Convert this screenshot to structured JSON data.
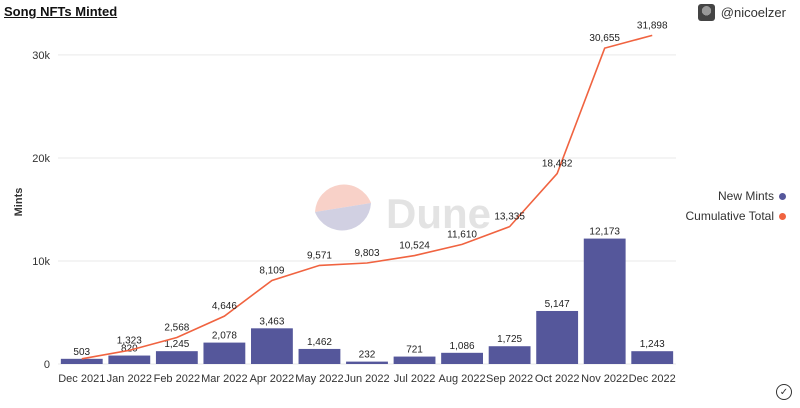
{
  "header": {
    "title": "Song NFTs Minted",
    "author": "@nicoelzer"
  },
  "watermark": {
    "text": "Dune"
  },
  "legend": {
    "items": [
      {
        "label": "New Mints",
        "color": "#55579b"
      },
      {
        "label": "Cumulative Total",
        "color": "#f06340"
      }
    ]
  },
  "chart_data": {
    "type": "bar",
    "title": "Song NFTs Minted",
    "xlabel": "",
    "ylabel": "Mints",
    "ylim": [
      0,
      33000
    ],
    "yticks": [
      0,
      10000,
      20000,
      30000
    ],
    "ytick_labels": [
      "0",
      "10k",
      "20k",
      "30k"
    ],
    "categories": [
      "Dec 2021",
      "Jan 2022",
      "Feb 2022",
      "Mar 2022",
      "Apr 2022",
      "May 2022",
      "Jun 2022",
      "Jul 2022",
      "Aug 2022",
      "Sep 2022",
      "Oct 2022",
      "Nov 2022",
      "Dec 2022"
    ],
    "series": [
      {
        "name": "New Mints",
        "kind": "bar",
        "color": "#55579b",
        "values": [
          503,
          820,
          1245,
          2078,
          3463,
          1462,
          232,
          721,
          1086,
          1725,
          5147,
          12173,
          1243
        ],
        "labels": [
          "503",
          "820",
          "1,245",
          "2,078",
          "3,463",
          "1,462",
          "232",
          "721",
          "1,086",
          "1,725",
          "5,147",
          "12,173",
          "1,243"
        ]
      },
      {
        "name": "Cumulative Total",
        "kind": "line",
        "color": "#f06340",
        "values": [
          503,
          1323,
          2568,
          4646,
          8109,
          9571,
          9803,
          10524,
          11610,
          13335,
          18482,
          30655,
          31898
        ],
        "labels": [
          "",
          "1,323",
          "2,568",
          "4,646",
          "8,109",
          "9,571",
          "9,803",
          "10,524",
          "11,610",
          "13,335",
          "18,482",
          "30,655",
          "31,898"
        ]
      }
    ],
    "legend_position": "right"
  }
}
